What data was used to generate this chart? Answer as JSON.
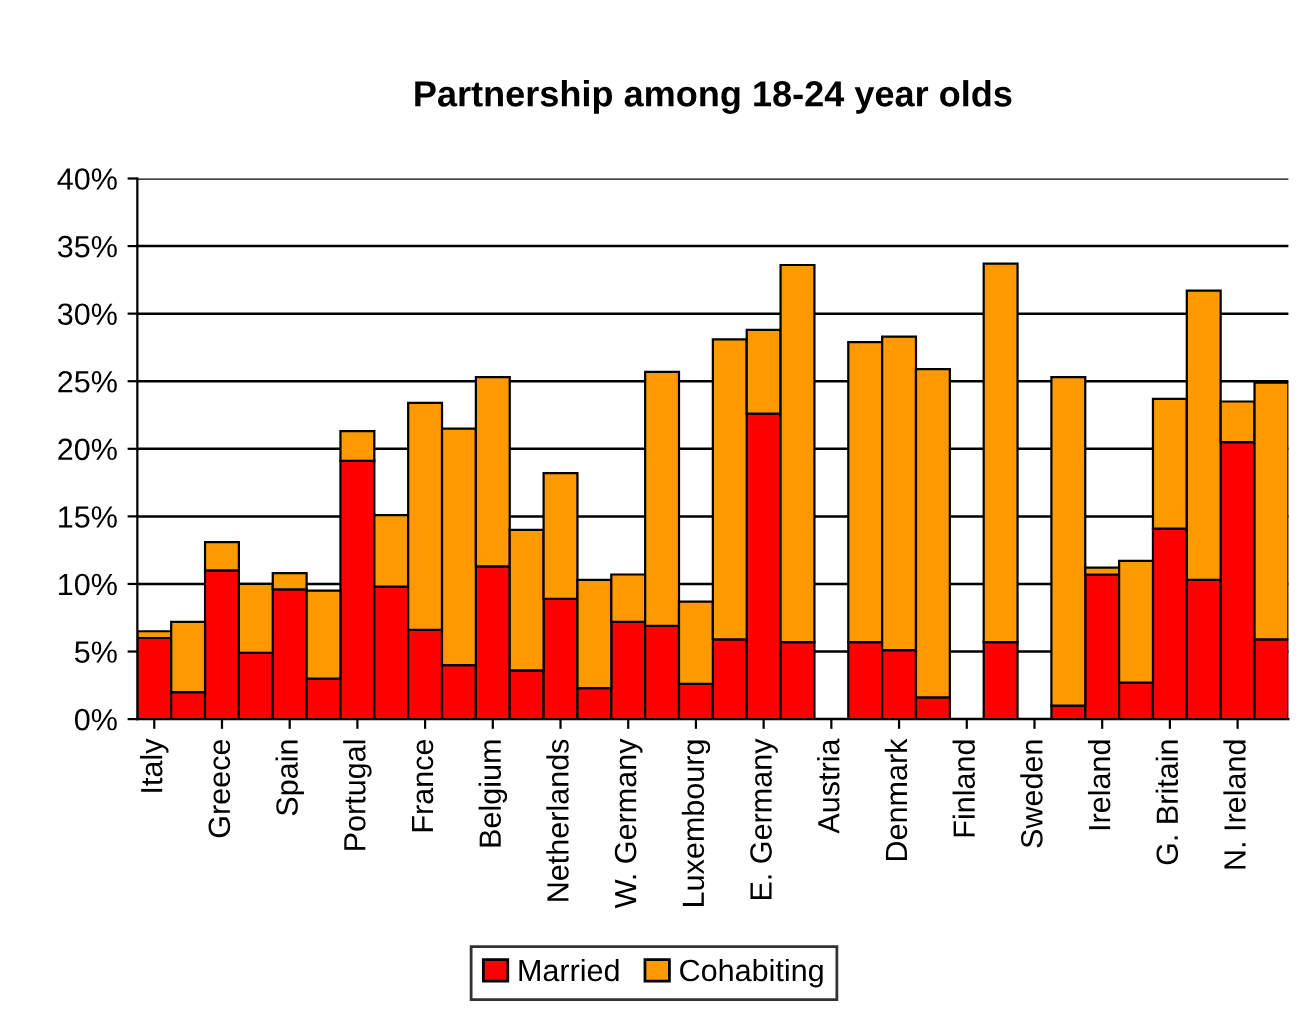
{
  "chart_data": {
    "type": "bar",
    "title": "Partnership among 18-24 year olds",
    "stacked": true,
    "grid": "y",
    "legend": "bottom",
    "categories": [
      "Italy",
      null,
      "Greece",
      null,
      "Spain",
      null,
      "Portugal",
      null,
      "France",
      null,
      "Belgium",
      null,
      "Netherlands",
      null,
      "W. Germany",
      null,
      "Luxembourg",
      null,
      "E. Germany",
      null,
      "Austria",
      null,
      "Denmark",
      null,
      "Finland",
      null,
      "Sweden",
      null,
      "Ireland",
      null,
      "G. Britain",
      null,
      "N. Ireland",
      null
    ],
    "series": [
      {
        "name": "Married",
        "color": "#ff0000",
        "values": [
          6.0,
          2.0,
          11.0,
          4.9,
          9.6,
          3.0,
          19.1,
          9.8,
          6.6,
          4.0,
          11.3,
          3.6,
          8.9,
          2.3,
          7.2,
          6.9,
          2.6,
          5.9,
          22.6,
          5.7,
          null,
          5.7,
          5.1,
          1.6,
          null,
          5.7,
          null,
          1.0,
          10.7,
          2.7,
          14.1,
          10.3,
          20.5,
          5.9
        ]
      },
      {
        "name": "Cohabiting",
        "color": "#ff9900",
        "values": [
          0.5,
          5.2,
          2.1,
          5.1,
          1.2,
          6.5,
          2.2,
          5.3,
          16.8,
          17.5,
          14.0,
          10.4,
          9.3,
          8.0,
          3.5,
          18.8,
          6.1,
          22.2,
          6.2,
          27.9,
          null,
          22.2,
          23.2,
          24.3,
          null,
          28.0,
          null,
          24.3,
          0.5,
          9.0,
          9.6,
          21.4,
          3.0,
          19.0
        ]
      }
    ],
    "ylim": [
      0,
      40
    ],
    "yticks": [
      {
        "value": 0,
        "label": "0%"
      },
      {
        "value": 5,
        "label": "5%"
      },
      {
        "value": 10,
        "label": "10%"
      },
      {
        "value": 15,
        "label": "15%"
      },
      {
        "value": 20,
        "label": "20%"
      },
      {
        "value": 25,
        "label": "25%"
      },
      {
        "value": 30,
        "label": "30%"
      },
      {
        "value": 35,
        "label": "35%"
      },
      {
        "value": 40,
        "label": "40%"
      }
    ]
  }
}
